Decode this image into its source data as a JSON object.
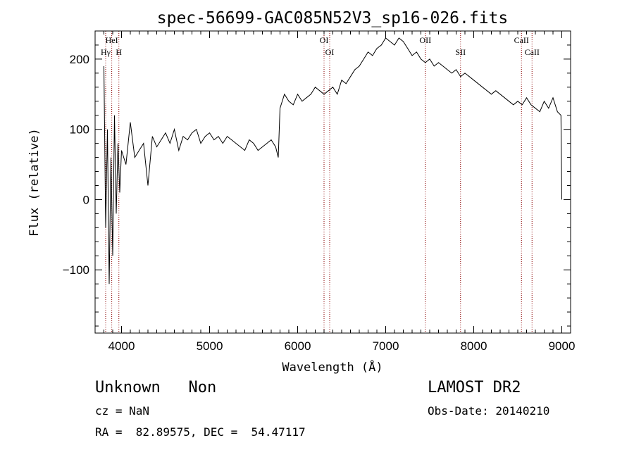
{
  "chart_data": {
    "type": "line",
    "title": "spec-56699-GAC085N52V3_sp16-026.fits",
    "xlabel": "Wavelength (Å)",
    "ylabel": "Flux (relative)",
    "xlim": [
      3700,
      9100
    ],
    "ylim": [
      -190,
      240
    ],
    "x_ticks": [
      4000,
      5000,
      6000,
      7000,
      8000,
      9000
    ],
    "y_ticks": [
      -100,
      0,
      100,
      200
    ],
    "grid": false,
    "series": [
      {
        "x": [
          3800,
          3820,
          3840,
          3860,
          3880,
          3900,
          3920,
          3940,
          3960,
          3980,
          4000,
          4050,
          4100,
          4150,
          4200,
          4250,
          4300,
          4350,
          4400,
          4450,
          4500,
          4550,
          4600,
          4650,
          4700,
          4750,
          4800,
          4850,
          4900,
          4950,
          5000,
          5050,
          5100,
          5150,
          5200,
          5250,
          5300,
          5350,
          5400,
          5450,
          5500,
          5550,
          5600,
          5650,
          5700,
          5750,
          5780,
          5800,
          5850,
          5900,
          5950,
          6000,
          6050,
          6100,
          6150,
          6200,
          6250,
          6300,
          6350,
          6400,
          6450,
          6500,
          6550,
          6600,
          6650,
          6700,
          6750,
          6800,
          6850,
          6900,
          6950,
          7000,
          7050,
          7100,
          7150,
          7200,
          7250,
          7300,
          7350,
          7400,
          7450,
          7500,
          7550,
          7600,
          7650,
          7700,
          7750,
          7800,
          7850,
          7900,
          7950,
          8000,
          8050,
          8100,
          8150,
          8200,
          8250,
          8300,
          8350,
          8400,
          8450,
          8500,
          8550,
          8600,
          8650,
          8700,
          8750,
          8800,
          8850,
          8900,
          8950,
          8990,
          9000
        ],
        "y": [
          190,
          -40,
          100,
          -120,
          60,
          -80,
          120,
          -20,
          80,
          10,
          70,
          50,
          110,
          60,
          70,
          80,
          20,
          90,
          75,
          85,
          95,
          80,
          100,
          70,
          90,
          85,
          95,
          100,
          80,
          90,
          95,
          85,
          90,
          80,
          90,
          85,
          80,
          75,
          70,
          85,
          80,
          70,
          75,
          80,
          85,
          75,
          60,
          130,
          150,
          140,
          135,
          150,
          140,
          145,
          150,
          160,
          155,
          150,
          155,
          160,
          150,
          170,
          165,
          175,
          185,
          190,
          200,
          210,
          205,
          215,
          220,
          230,
          225,
          220,
          230,
          225,
          215,
          205,
          210,
          200,
          195,
          200,
          190,
          195,
          190,
          185,
          180,
          185,
          175,
          180,
          175,
          170,
          165,
          160,
          155,
          150,
          155,
          150,
          145,
          140,
          135,
          140,
          135,
          145,
          135,
          130,
          125,
          140,
          130,
          145,
          125,
          120,
          0
        ]
      }
    ],
    "lines": [
      {
        "name": "Hγ",
        "x": 3820
      },
      {
        "name": "HeI",
        "x": 3889
      },
      {
        "name": "H",
        "x": 3970
      },
      {
        "name": "OI",
        "x": 6300
      },
      {
        "name": "OI",
        "x": 6364
      },
      {
        "name": "OII",
        "x": 7450
      },
      {
        "name": "SII",
        "x": 7850
      },
      {
        "name": "CaII",
        "x": 8542
      },
      {
        "name": "CaII",
        "x": 8662
      }
    ],
    "line_color": "#8b0000"
  },
  "info": {
    "class_line": "Unknown   Non",
    "cz_line": "cz = NaN",
    "radec_line": "RA =  82.89575, DEC =  54.47117",
    "survey": "LAMOST DR2",
    "obs_date": "Obs-Date: 20140210"
  }
}
